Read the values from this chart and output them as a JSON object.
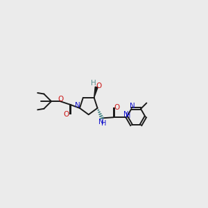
{
  "bg_color": "#ebebeb",
  "bond_color": "#1a1a1a",
  "N_color": "#1414cc",
  "O_color": "#cc1414",
  "OH_color": "#5a9090",
  "figsize": [
    3.0,
    3.0
  ],
  "dpi": 100,
  "xlim": [
    0.3,
    2.85
  ],
  "ylim": [
    0.25,
    0.95
  ]
}
